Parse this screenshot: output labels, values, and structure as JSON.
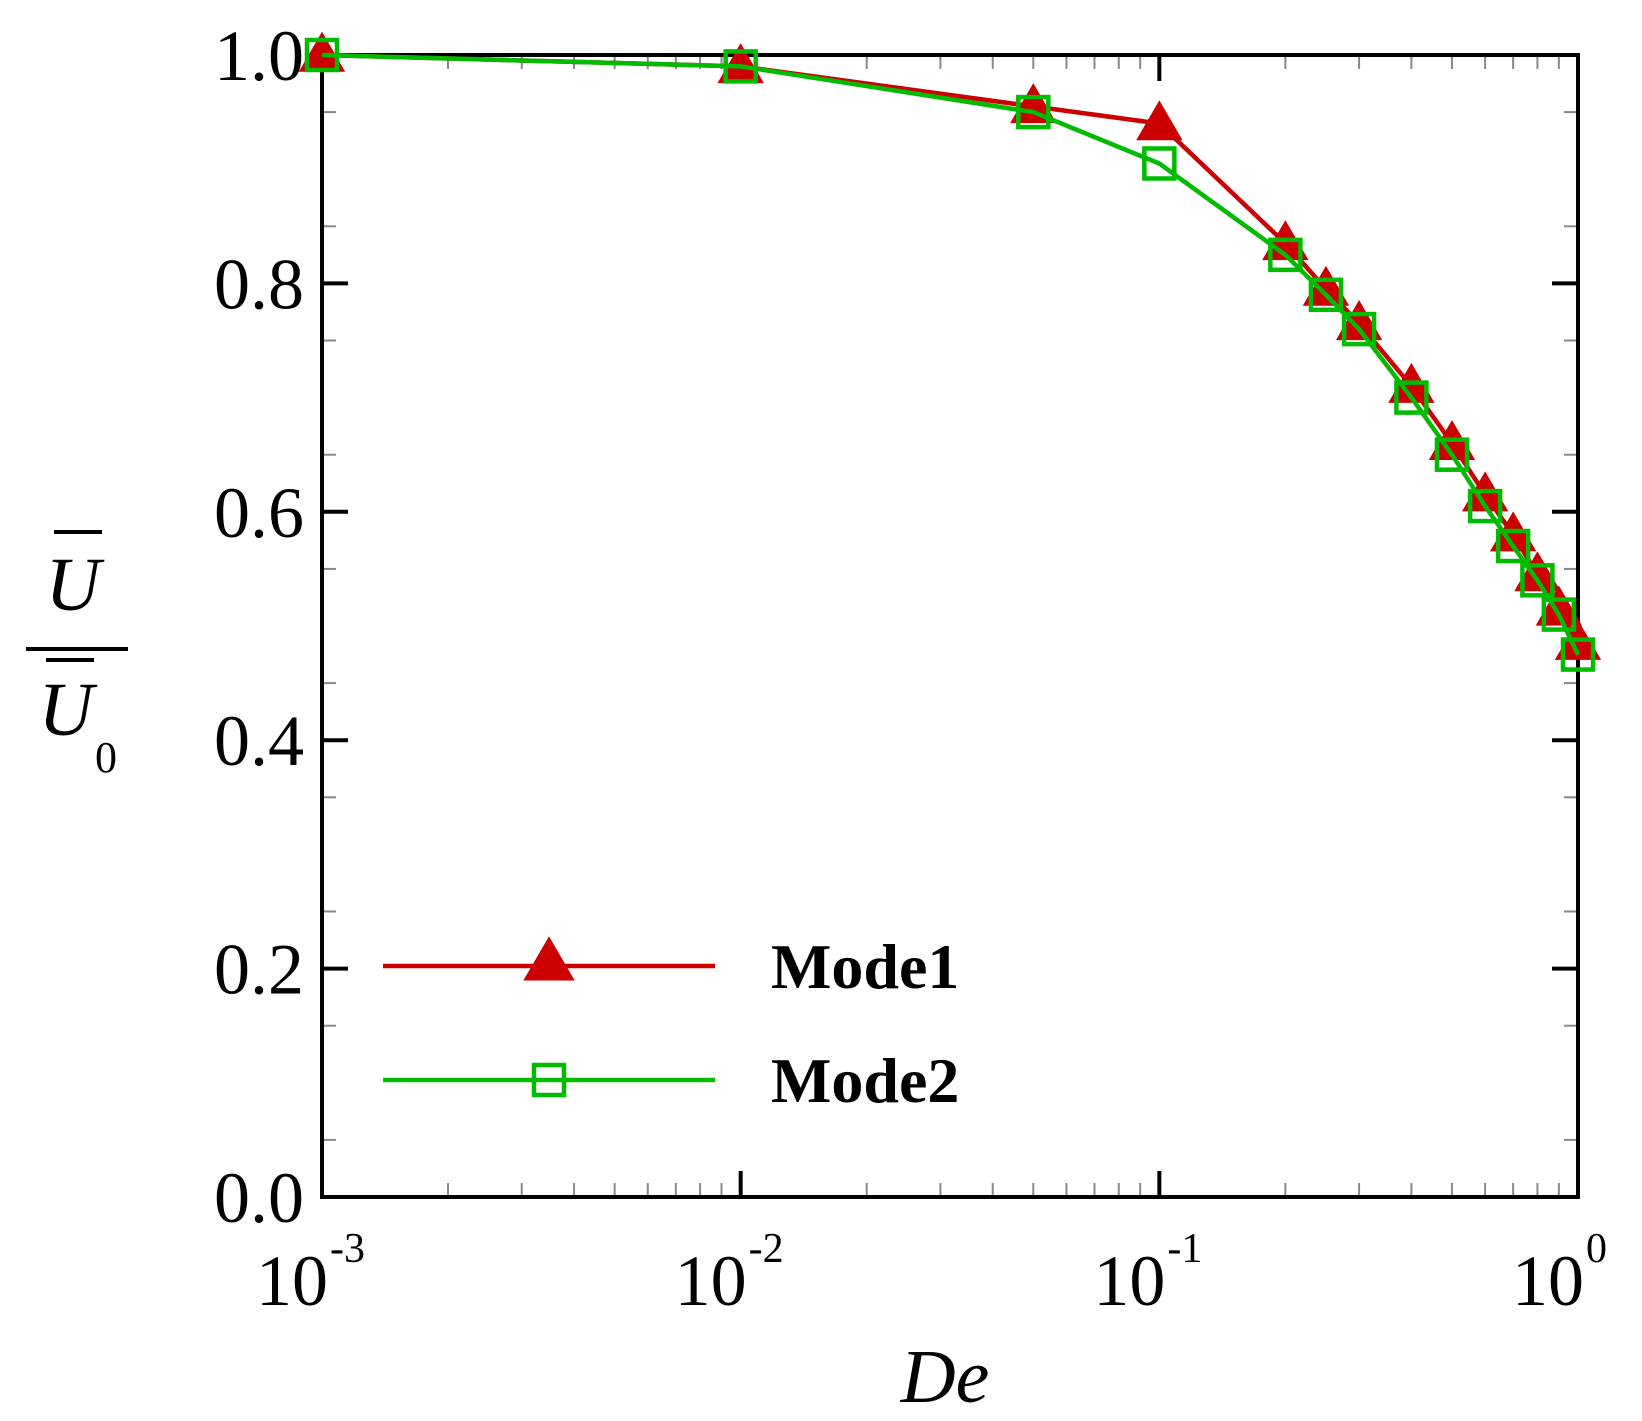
{
  "chart_data": {
    "type": "line",
    "xscale": "log",
    "xlabel": "De",
    "ylabel": {
      "numerator": "U",
      "denominator": "U",
      "subscript": "0"
    },
    "xlim": [
      0.001,
      1
    ],
    "ylim": [
      0,
      1
    ],
    "x_ticks": [
      {
        "value": 0.001,
        "base": "10",
        "exp": "-3"
      },
      {
        "value": 0.01,
        "base": "10",
        "exp": "-2"
      },
      {
        "value": 0.1,
        "base": "10",
        "exp": "-1"
      },
      {
        "value": 1,
        "base": "10",
        "exp": "0"
      }
    ],
    "y_ticks": [
      {
        "value": 0.0,
        "label": "0.0"
      },
      {
        "value": 0.2,
        "label": "0.2"
      },
      {
        "value": 0.4,
        "label": "0.4"
      },
      {
        "value": 0.6,
        "label": "0.6"
      },
      {
        "value": 0.8,
        "label": "0.8"
      },
      {
        "value": 1.0,
        "label": "1.0"
      }
    ],
    "legend_position": "bottom-left",
    "series": [
      {
        "name": "Mode1",
        "color": "#cc0000",
        "marker": "filled-triangle",
        "x": [
          0.001,
          0.01,
          0.05,
          0.1,
          0.2,
          0.25,
          0.3,
          0.4,
          0.5,
          0.6,
          0.7,
          0.8,
          0.9,
          1.0
        ],
        "y": [
          1.0,
          0.99,
          0.955,
          0.94,
          0.835,
          0.795,
          0.765,
          0.71,
          0.66,
          0.615,
          0.58,
          0.545,
          0.515,
          0.485
        ]
      },
      {
        "name": "Mode2",
        "color": "#00bb00",
        "marker": "open-square",
        "x": [
          0.001,
          0.01,
          0.05,
          0.1,
          0.2,
          0.25,
          0.3,
          0.4,
          0.5,
          0.6,
          0.7,
          0.8,
          0.9,
          1.0
        ],
        "y": [
          1.0,
          0.99,
          0.95,
          0.905,
          0.825,
          0.79,
          0.76,
          0.7,
          0.65,
          0.605,
          0.57,
          0.54,
          0.51,
          0.475
        ]
      }
    ]
  }
}
